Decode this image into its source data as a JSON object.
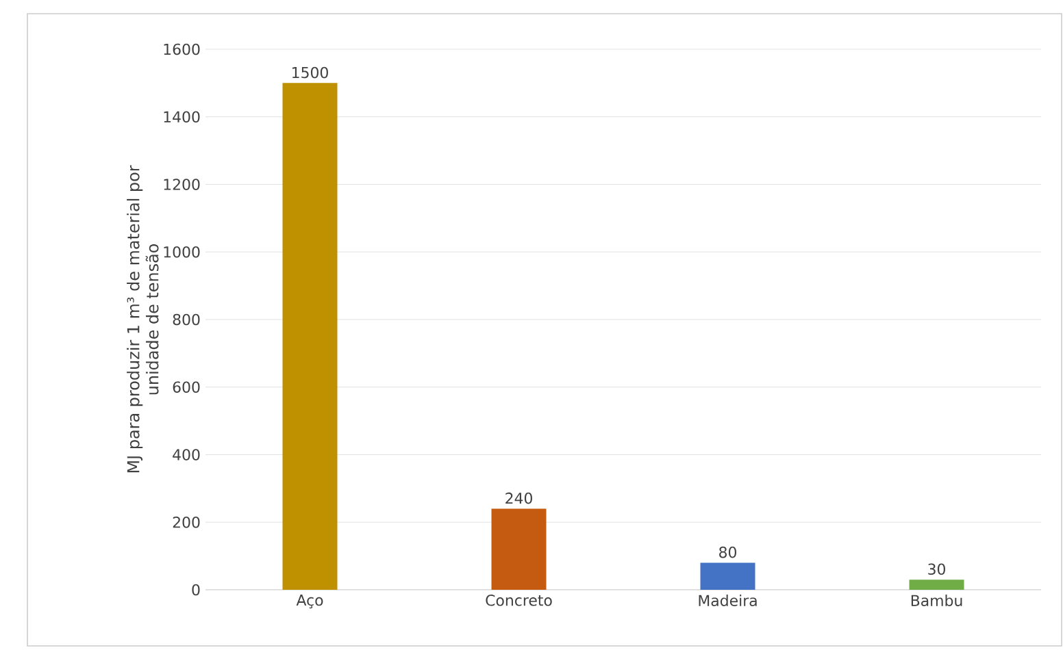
{
  "chart_data": {
    "type": "bar",
    "ylabel": "MJ para produzir 1 m³ de material por unidade de tensão",
    "categories": [
      "Aço",
      "Concreto",
      "Madeira",
      "Bambu"
    ],
    "values": [
      1500,
      240,
      80,
      30
    ],
    "colors": [
      "#bf9000",
      "#c55a11",
      "#4472c4",
      "#70ad47"
    ],
    "ylim": [
      0,
      1600
    ],
    "yticks": [
      0,
      200,
      400,
      600,
      800,
      1000,
      1200,
      1400,
      1600
    ],
    "grid": true,
    "data_labels": true
  }
}
